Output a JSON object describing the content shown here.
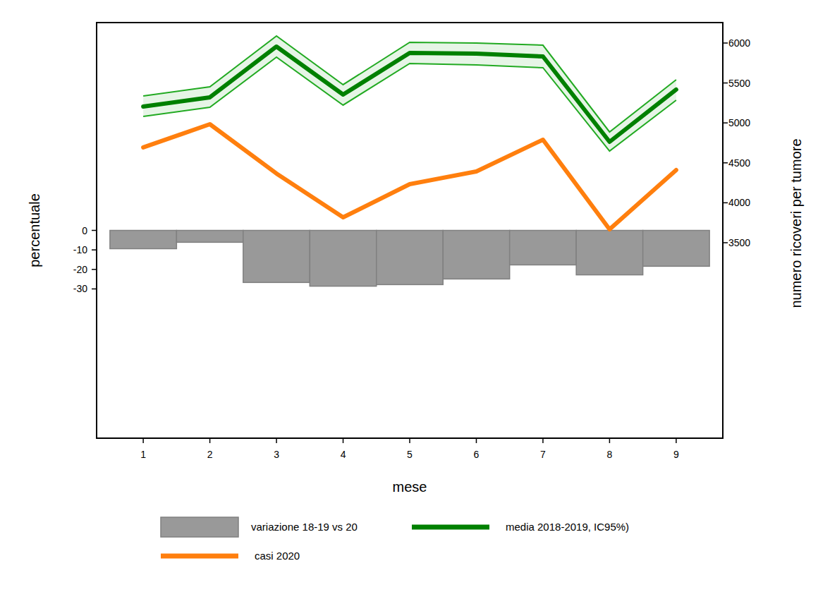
{
  "chart_data": {
    "type": "bar",
    "x_label": "mese",
    "y_label": "percentuale",
    "y2_label": "numero ricoveri per tumore",
    "x": [
      1,
      2,
      3,
      4,
      5,
      6,
      7,
      8,
      9
    ],
    "xlim": [
      0.3,
      9.7
    ],
    "xticks": [
      1,
      2,
      3,
      4,
      5,
      6,
      7,
      8,
      9
    ],
    "ylim": [
      -106.5,
      106.5
    ],
    "yticks": [
      0,
      -10,
      -20,
      -30
    ],
    "y2lim": [
      1053,
      6256
    ],
    "y2ticks": [
      3500,
      4000,
      4500,
      5000,
      5500,
      6000
    ],
    "legend": "bottom",
    "grid": false,
    "series": [
      {
        "name": "variazione 18-19 vs 20",
        "type": "bar",
        "color": "#999999",
        "values": [
          -9.4,
          -6.1,
          -26.7,
          -28.6,
          -27.8,
          -24.9,
          -17.7,
          -22.8,
          -18.4
        ]
      },
      {
        "name": "media 2018-2019, IC95%)",
        "type": "line",
        "axis": "y2",
        "color": "#008000",
        "values": [
          5205,
          5320,
          5956,
          5355,
          5876,
          5867,
          5832,
          4763,
          5417
        ],
        "ci_lower": [
          5081,
          5196,
          5823,
          5223,
          5744,
          5726,
          5691,
          4648,
          5284
        ],
        "ci_upper": [
          5337,
          5452,
          6088,
          5479,
          6009,
          6000,
          5973,
          4887,
          5541
        ]
      },
      {
        "name": "casi 2020",
        "type": "line",
        "axis": "y2",
        "color": "#ff7f0e",
        "values": [
          4693,
          4984,
          4366,
          3818,
          4233,
          4392,
          4790,
          3668,
          4410
        ]
      }
    ]
  }
}
